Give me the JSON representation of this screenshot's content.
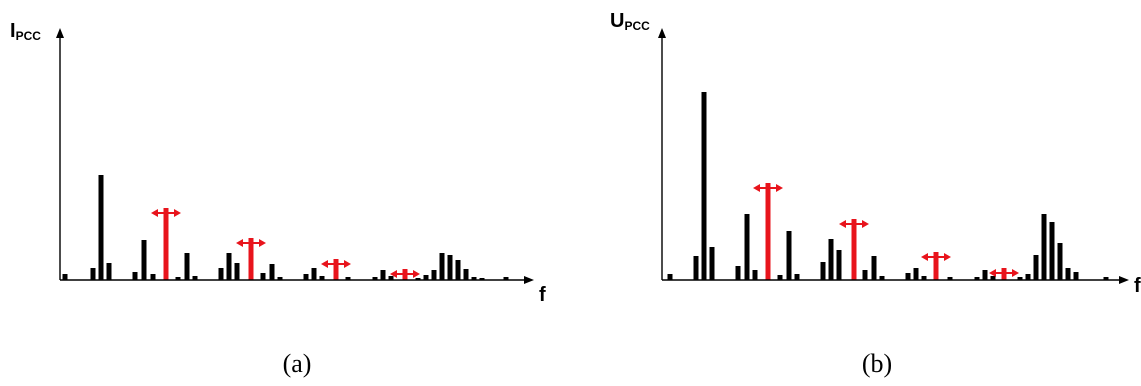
{
  "colors": {
    "harmonic": "#000000",
    "highlight": "#e8141c",
    "axis": "#000000"
  },
  "panels": [
    {
      "id": "a",
      "y_label_main": "I",
      "y_label_sub": "PCC",
      "x_label": "f",
      "caption": "(a)",
      "bars": [
        {
          "f": 5,
          "h": 6
        },
        {
          "f": 33,
          "h": 12
        },
        {
          "f": 41,
          "h": 105
        },
        {
          "f": 49,
          "h": 17
        },
        {
          "f": 75,
          "h": 8
        },
        {
          "f": 84,
          "h": 40
        },
        {
          "f": 93,
          "h": 6
        },
        {
          "f": 118,
          "h": 3
        },
        {
          "f": 127,
          "h": 27
        },
        {
          "f": 135,
          "h": 4
        },
        {
          "f": 161,
          "h": 12
        },
        {
          "f": 169,
          "h": 27
        },
        {
          "f": 177,
          "h": 17
        },
        {
          "f": 203,
          "h": 7
        },
        {
          "f": 212,
          "h": 16
        },
        {
          "f": 220,
          "h": 3
        },
        {
          "f": 246,
          "h": 6
        },
        {
          "f": 254,
          "h": 12
        },
        {
          "f": 262,
          "h": 4
        },
        {
          "f": 288,
          "h": 3
        },
        {
          "f": 315,
          "h": 3
        },
        {
          "f": 323,
          "h": 10
        },
        {
          "f": 331,
          "h": 4
        },
        {
          "f": 358,
          "h": 2
        },
        {
          "f": 366,
          "h": 5
        },
        {
          "f": 374,
          "h": 10
        },
        {
          "f": 382,
          "h": 27
        },
        {
          "f": 390,
          "h": 25
        },
        {
          "f": 398,
          "h": 20
        },
        {
          "f": 406,
          "h": 11
        },
        {
          "f": 414,
          "h": 3
        },
        {
          "f": 422,
          "h": 2
        },
        {
          "f": 446,
          "h": 3
        }
      ],
      "highlights": [
        {
          "f": 106,
          "h": 72
        },
        {
          "f": 191,
          "h": 42
        },
        {
          "f": 276,
          "h": 21
        },
        {
          "f": 345,
          "h": 11
        }
      ]
    },
    {
      "id": "b",
      "y_label_main": "U",
      "y_label_sub": "PCC",
      "x_label": "f",
      "caption": "(b)",
      "bars": [
        {
          "f": 8,
          "h": 6
        },
        {
          "f": 34,
          "h": 24
        },
        {
          "f": 42,
          "h": 188
        },
        {
          "f": 50,
          "h": 33
        },
        {
          "f": 76,
          "h": 14
        },
        {
          "f": 85,
          "h": 66
        },
        {
          "f": 93,
          "h": 10
        },
        {
          "f": 118,
          "h": 5
        },
        {
          "f": 127,
          "h": 49
        },
        {
          "f": 135,
          "h": 6
        },
        {
          "f": 161,
          "h": 18
        },
        {
          "f": 169,
          "h": 41
        },
        {
          "f": 177,
          "h": 30
        },
        {
          "f": 203,
          "h": 10
        },
        {
          "f": 212,
          "h": 24
        },
        {
          "f": 220,
          "h": 4
        },
        {
          "f": 246,
          "h": 7
        },
        {
          "f": 254,
          "h": 12
        },
        {
          "f": 262,
          "h": 4
        },
        {
          "f": 288,
          "h": 3
        },
        {
          "f": 315,
          "h": 3
        },
        {
          "f": 323,
          "h": 10
        },
        {
          "f": 331,
          "h": 4
        },
        {
          "f": 358,
          "h": 3
        },
        {
          "f": 366,
          "h": 6
        },
        {
          "f": 374,
          "h": 25
        },
        {
          "f": 382,
          "h": 66
        },
        {
          "f": 390,
          "h": 58
        },
        {
          "f": 398,
          "h": 37
        },
        {
          "f": 406,
          "h": 12
        },
        {
          "f": 414,
          "h": 8
        },
        {
          "f": 444,
          "h": 3
        }
      ],
      "highlights": [
        {
          "f": 106,
          "h": 97
        },
        {
          "f": 192,
          "h": 61
        },
        {
          "f": 274,
          "h": 28
        },
        {
          "f": 342,
          "h": 12
        }
      ]
    }
  ]
}
